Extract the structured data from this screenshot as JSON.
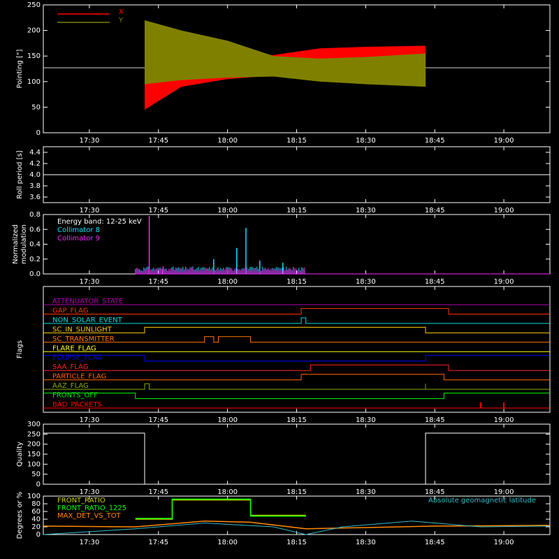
{
  "colors": {
    "background": "#000000",
    "axis": "#ffffff",
    "x_pointing": "#ff0000",
    "y_pointing": "#808000",
    "collimator8": "#00e5ff",
    "collimator9": "#ff22ff",
    "front_ratio": "#cccc00",
    "front_ratio_1225": "#00ff00",
    "max_det_vs_tot": "#ff8800",
    "geomag": "#33bbcc"
  },
  "time_axis": {
    "start": "17:20",
    "end": "19:10",
    "tick_labels": [
      "17:30",
      "17:45",
      "18:00",
      "18:15",
      "18:30",
      "18:45",
      "19:00"
    ]
  },
  "chart_data": [
    {
      "type": "area",
      "id": "pointing",
      "ylabel": "Pointing [\"]",
      "ylim": [
        0,
        250
      ],
      "yticks": [
        0,
        50,
        100,
        150,
        200,
        250
      ],
      "legend": [
        "X",
        "Y"
      ],
      "baseline": 127,
      "data_span": [
        "17:42",
        "18:43"
      ],
      "series": [
        {
          "name": "X",
          "x": [
            "17:42",
            "17:50",
            "18:00",
            "18:10",
            "18:20",
            "18:30",
            "18:43"
          ],
          "min": [
            45,
            90,
            105,
            112,
            112,
            110,
            108
          ],
          "max": [
            195,
            170,
            150,
            152,
            165,
            168,
            170
          ]
        },
        {
          "name": "Y",
          "x": [
            "17:42",
            "17:50",
            "18:00",
            "18:10",
            "18:20",
            "18:30",
            "18:43"
          ],
          "min": [
            95,
            103,
            108,
            110,
            100,
            95,
            90
          ],
          "max": [
            220,
            200,
            180,
            150,
            145,
            148,
            155
          ]
        }
      ]
    },
    {
      "type": "line",
      "id": "roll",
      "ylabel": "Roll period [s]",
      "ylim": [
        3.5,
        4.5
      ],
      "yticks": [
        3.6,
        3.8,
        4.0,
        4.2,
        4.4
      ],
      "tick_labels": [
        "3.6",
        "3.8",
        "4.0",
        "4.2",
        "4.4"
      ],
      "value": 4.0
    },
    {
      "type": "bar",
      "id": "modulation",
      "ylabel": "Normalized modulation",
      "ylim": [
        0,
        0.8
      ],
      "yticks": [
        0,
        0.2,
        0.4,
        0.6,
        0.8
      ],
      "tick_labels": [
        "0.0",
        "0.2",
        "0.4",
        "0.6",
        "0.8"
      ],
      "annotation": "Energy band: 12-25 keV",
      "data_span": [
        "17:40",
        "18:17"
      ],
      "series": [
        {
          "name": "Collimator 8",
          "typical": [
            0.04,
            0.1
          ],
          "spikes": [
            {
              "x": "17:57",
              "y": 0.2
            },
            {
              "x": "18:02",
              "y": 0.35
            },
            {
              "x": "18:04",
              "y": 0.62
            },
            {
              "x": "18:07",
              "y": 0.18
            },
            {
              "x": "18:12",
              "y": 0.15
            }
          ]
        },
        {
          "name": "Collimator 9",
          "typical": [
            0.03,
            0.09
          ],
          "spikes": [
            {
              "x": "17:43",
              "y": 0.78
            },
            {
              "x": "17:46",
              "y": 0.1
            }
          ]
        }
      ]
    },
    {
      "type": "line",
      "id": "flags",
      "ylabel": "Flags",
      "flags": [
        {
          "name": "ATTENUATOR_STATE",
          "color": "#b000b0",
          "segments": [
            [
              "17:20",
              "19:10",
              0
            ]
          ]
        },
        {
          "name": "GAP_FLAG",
          "color": "#ff3300",
          "segments": [
            [
              "17:20",
              "18:16",
              0
            ],
            [
              "18:16",
              "18:48",
              1
            ],
            [
              "18:48",
              "19:10",
              0
            ]
          ]
        },
        {
          "name": "NON_SOLAR_EVENT",
          "color": "#00dddd",
          "segments": [
            [
              "17:20",
              "18:16",
              0
            ],
            [
              "18:16",
              "18:17",
              1
            ],
            [
              "18:17",
              "19:10",
              0
            ]
          ]
        },
        {
          "name": "SC_IN_SUNLIGHT",
          "color": "#ffcc00",
          "segments": [
            [
              "17:20",
              "17:42",
              0
            ],
            [
              "17:42",
              "18:43",
              1
            ],
            [
              "18:43",
              "19:10",
              0
            ]
          ]
        },
        {
          "name": "SC_TRANSMITTER",
          "color": "#ff7700",
          "segments": [
            [
              "17:20",
              "17:55",
              0
            ],
            [
              "17:55",
              "17:57",
              1
            ],
            [
              "17:57",
              "17:58",
              0
            ],
            [
              "17:58",
              "18:05",
              1
            ],
            [
              "18:05",
              "19:10",
              0
            ]
          ]
        },
        {
          "name": "FLARE_FLAG",
          "color": "#ffff00",
          "segments": [
            [
              "17:20",
              "19:10",
              0
            ]
          ]
        },
        {
          "name": "ECLIPSE_FLAG",
          "color": "#0000ff",
          "segments": [
            [
              "17:20",
              "17:42",
              1
            ],
            [
              "17:42",
              "18:43",
              0
            ],
            [
              "18:43",
              "19:10",
              1
            ]
          ]
        },
        {
          "name": "SAA_FLAG",
          "color": "#ff2222",
          "segments": [
            [
              "17:20",
              "18:18",
              0
            ],
            [
              "18:18",
              "18:48",
              1
            ],
            [
              "18:48",
              "19:10",
              0
            ]
          ]
        },
        {
          "name": "PARTICLE_FLAG",
          "color": "#ff6600",
          "segments": [
            [
              "17:20",
              "18:16",
              0
            ],
            [
              "18:16",
              "18:47",
              1
            ],
            [
              "18:47",
              "19:10",
              0
            ]
          ]
        },
        {
          "name": "AAZ_FLAG",
          "color": "#88aa00",
          "segments": [
            [
              "17:20",
              "17:42",
              0
            ],
            [
              "17:42",
              "17:43",
              1
            ],
            [
              "17:43",
              "18:43",
              0
            ],
            [
              "18:43",
              "18:43",
              1
            ],
            [
              "18:43",
              "19:10",
              0
            ]
          ]
        },
        {
          "name": "FRONTS_OFF",
          "color": "#00ee00",
          "segments": [
            [
              "17:20",
              "17:40",
              1
            ],
            [
              "17:40",
              "18:47",
              0
            ],
            [
              "18:47",
              "19:10",
              1
            ]
          ]
        },
        {
          "name": "BAD_PACKETS",
          "color": "#ff0000",
          "segments": [
            [
              "17:20",
              "19:10",
              0
            ]
          ],
          "ticks": [
            "18:55",
            "19:00"
          ]
        }
      ]
    },
    {
      "type": "line",
      "id": "quality",
      "ylabel": "Quality",
      "ylim": [
        0,
        300
      ],
      "yticks": [
        0,
        50,
        100,
        150,
        200,
        250,
        300
      ],
      "points": [
        {
          "x": "17:20",
          "y": 255
        },
        {
          "x": "17:42",
          "y": 255
        },
        {
          "x": "17:42",
          "y": 0
        },
        {
          "x": "18:43",
          "y": 0
        },
        {
          "x": "18:43",
          "y": 255
        },
        {
          "x": "19:10",
          "y": 255
        }
      ]
    },
    {
      "type": "line",
      "id": "ratios",
      "ylabel": "Degrees or %",
      "ylim": [
        0,
        100
      ],
      "yticks": [
        0,
        20,
        40,
        60,
        80,
        100
      ],
      "annotation": "Absolute geomagnetic latitude",
      "series": [
        {
          "name": "FRONT_RATIO",
          "x": [
            "17:40",
            "17:48",
            "17:48",
            "18:05",
            "18:05",
            "18:17"
          ],
          "y": [
            40,
            40,
            90,
            90,
            50,
            50
          ]
        },
        {
          "name": "FRONT_RATIO_1225",
          "x": [
            "17:40",
            "17:48",
            "17:48",
            "18:05",
            "18:05",
            "18:17"
          ],
          "y": [
            42,
            42,
            92,
            92,
            48,
            48
          ]
        },
        {
          "name": "MAX_DET_VS_TOT",
          "x": [
            "17:20",
            "17:40",
            "17:55",
            "18:05",
            "18:17",
            "18:45",
            "19:10"
          ],
          "y": [
            22,
            20,
            35,
            32,
            15,
            22,
            24
          ]
        },
        {
          "name": "Absolute geomagnetic latitude",
          "x": [
            "17:20",
            "17:40",
            "17:55",
            "18:10",
            "18:17",
            "18:25",
            "18:40",
            "18:55",
            "19:10"
          ],
          "y": [
            0,
            15,
            30,
            20,
            0,
            20,
            35,
            20,
            22
          ]
        }
      ]
    }
  ]
}
